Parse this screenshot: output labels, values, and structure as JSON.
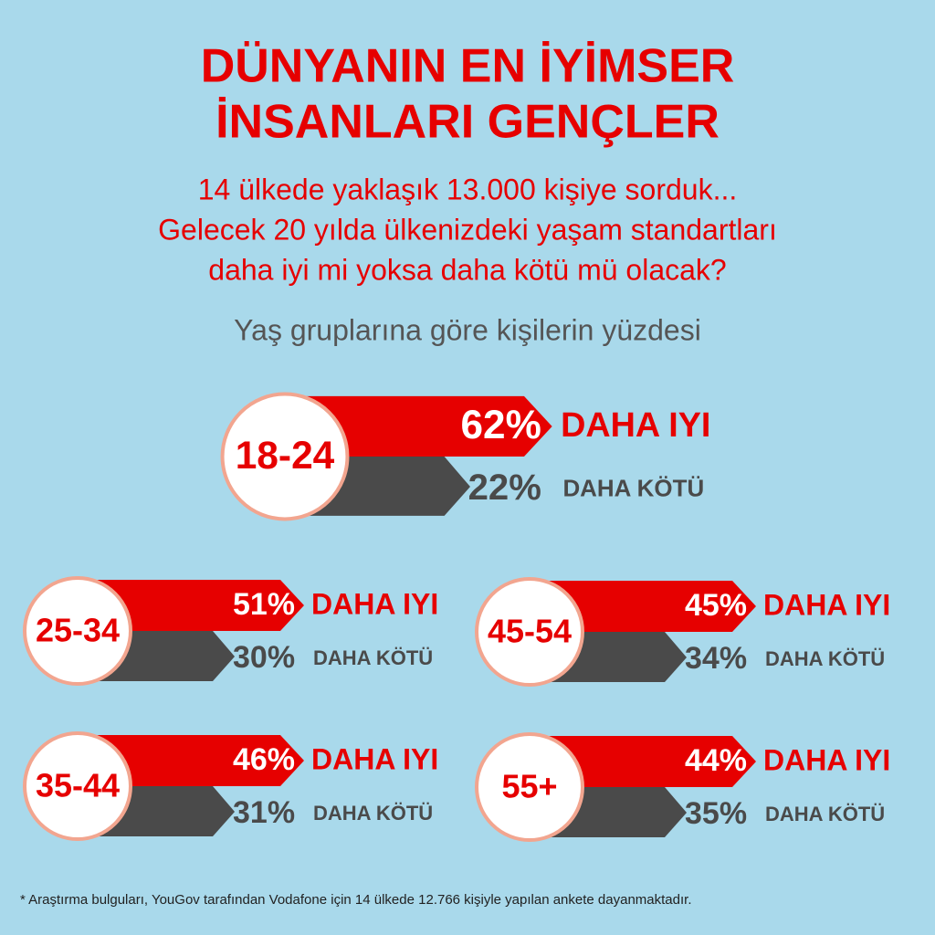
{
  "header": {
    "title": [
      "DÜNYANIN EN İYİMSER",
      "İNSANLARI GENÇLER"
    ],
    "subtitle": [
      "14 ülkede yaklaşık 13.000 kişiye sorduk...",
      "Gelecek 20 yılda ülkenizdeki yaşam standartları",
      "daha iyi mi yoksa daha kötü mü olacak?"
    ],
    "caption": "Yaş gruplarına göre kişilerin yüzdesi"
  },
  "groups": [
    {
      "age": "18-24",
      "better": "62%",
      "better_label": "DAHA IYI",
      "worse": "22%",
      "worse_label": "DAHA KÖTÜ"
    },
    {
      "age": "25-34",
      "better": "51%",
      "better_label": "DAHA IYI",
      "worse": "30%",
      "worse_label": "DAHA KÖTÜ"
    },
    {
      "age": "45-54",
      "better": "45%",
      "better_label": "DAHA IYI",
      "worse": "34%",
      "worse_label": "DAHA KÖTÜ"
    },
    {
      "age": "35-44",
      "better": "46%",
      "better_label": "DAHA IYI",
      "worse": "31%",
      "worse_label": "DAHA KÖTÜ"
    },
    {
      "age": "55+",
      "better": "44%",
      "better_label": "DAHA IYI",
      "worse": "35%",
      "worse_label": "DAHA KÖTÜ"
    }
  ],
  "footnote": "* Araştırma bulguları, YouGov tarafından Vodafone için 14 ülkede 12.766 kişiyle yapılan ankete dayanmaktadır."
}
